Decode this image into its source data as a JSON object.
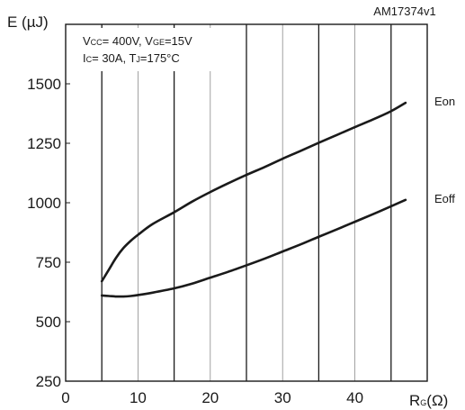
{
  "header": {
    "id_tag": "AM17374v1"
  },
  "axes": {
    "y_label": "E (µJ)",
    "x_label_main": "R",
    "x_label_sub": "G",
    "x_label_unit": "(Ω)"
  },
  "conditions": {
    "line1": [
      {
        "t": "V",
        "sub": false
      },
      {
        "t": "CC",
        "sub": true
      },
      {
        "t": "= 400V, V",
        "sub": false
      },
      {
        "t": "GE",
        "sub": true
      },
      {
        "t": "=15V",
        "sub": false
      }
    ],
    "line2": [
      {
        "t": "I",
        "sub": false
      },
      {
        "t": "C",
        "sub": true
      },
      {
        "t": "= 30A, T",
        "sub": false
      },
      {
        "t": "J",
        "sub": true
      },
      {
        "t": "=175°C",
        "sub": false
      }
    ]
  },
  "chart_data": {
    "type": "line",
    "xlim": [
      0,
      50
    ],
    "ylim": [
      250,
      1750
    ],
    "x_ticks": [
      0,
      10,
      20,
      30,
      40
    ],
    "y_ticks": [
      250,
      500,
      750,
      1000,
      1250,
      1500
    ],
    "x_grid": [
      5,
      10,
      15,
      20,
      25,
      30,
      35,
      40,
      45
    ],
    "grid": "vertical-only",
    "series": [
      {
        "name": "Eon",
        "x": [
          5,
          6,
          7,
          8,
          9,
          10,
          12,
          15,
          17.5,
          20,
          22.5,
          25,
          27.5,
          30,
          32.5,
          35,
          37.5,
          40,
          42.5,
          45,
          47
        ],
        "y": [
          670,
          720,
          770,
          810,
          840,
          865,
          910,
          960,
          1005,
          1045,
          1082,
          1117,
          1150,
          1185,
          1218,
          1252,
          1285,
          1318,
          1350,
          1385,
          1420
        ]
      },
      {
        "name": "Eoff",
        "x": [
          5,
          6,
          7,
          8,
          9,
          10,
          12,
          15,
          17.5,
          20,
          22.5,
          25,
          27.5,
          30,
          32.5,
          35,
          37.5,
          40,
          42.5,
          45,
          47
        ],
        "y": [
          610,
          608,
          606,
          606,
          608,
          612,
          622,
          640,
          660,
          685,
          710,
          737,
          765,
          795,
          825,
          857,
          888,
          920,
          952,
          985,
          1012
        ]
      }
    ]
  }
}
